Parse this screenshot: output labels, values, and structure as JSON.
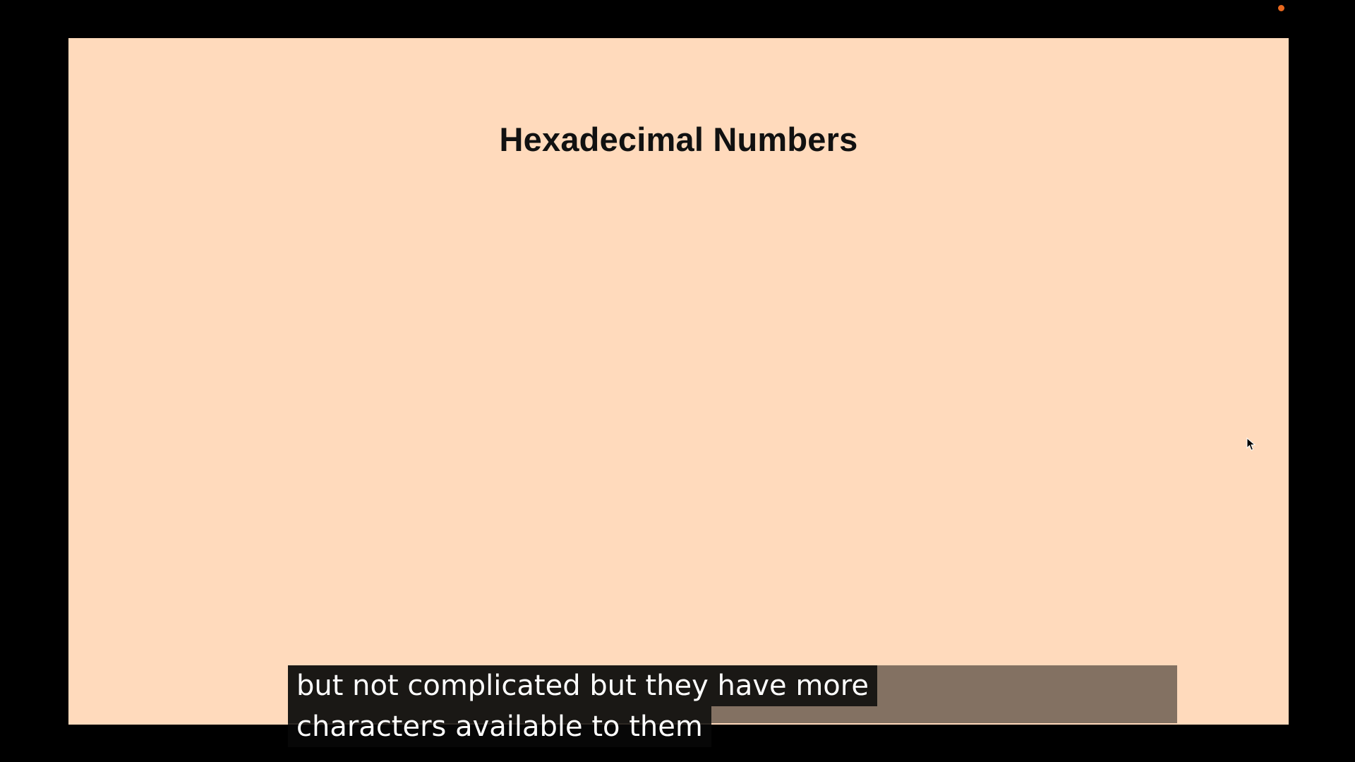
{
  "slide": {
    "title": "Hexadecimal Numbers",
    "background": "#ffdabc"
  },
  "captions": {
    "line1": "but not complicated but they have more",
    "line2": "characters available to them"
  },
  "colors": {
    "frame": "#000000",
    "recording_indicator": "#e8681e",
    "caption_text": "#ffffff"
  },
  "icons": {
    "cursor": "arrow-cursor-icon",
    "recording": "recording-indicator-icon"
  }
}
